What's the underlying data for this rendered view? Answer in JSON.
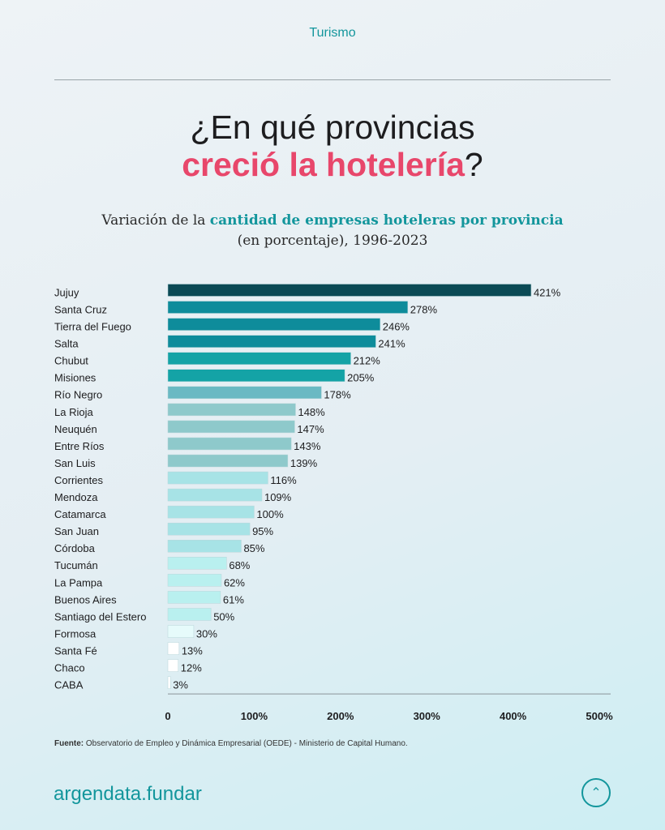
{
  "header": {
    "section": "Turismo"
  },
  "title": {
    "line1": "¿En qué provincias",
    "accent": "creció la hotelería",
    "end": "?"
  },
  "subtitle": {
    "pre": "Variación de la ",
    "highlight": "cantidad de empresas hoteleras por provincia",
    "line2": "(en porcentaje), 1996-2023"
  },
  "chart_data": {
    "type": "bar",
    "orientation": "horizontal",
    "title": "Variación de la cantidad de empresas hoteleras por provincia (en porcentaje), 1996-2023",
    "xlabel": "",
    "ylabel": "",
    "xlim": [
      0,
      500
    ],
    "x_ticks": [
      "0",
      "100%",
      "200%",
      "300%",
      "400%",
      "500%"
    ],
    "categories": [
      "Jujuy",
      "Santa Cruz",
      "Tierra del Fuego",
      "Salta",
      "Chubut",
      "Misiones",
      "Río Negro",
      "La Rioja",
      "Neuquén",
      "Entre Ríos",
      "San Luis",
      "Corrientes",
      "Mendoza",
      "Catamarca",
      "San Juan",
      "Córdoba",
      "Tucumán",
      "La Pampa",
      "Buenos Aires",
      "Santiago del Estero",
      "Formosa",
      "Santa Fé",
      "Chaco",
      "CABA"
    ],
    "values": [
      421,
      278,
      246,
      241,
      212,
      205,
      178,
      148,
      147,
      143,
      139,
      116,
      109,
      100,
      95,
      85,
      68,
      62,
      61,
      50,
      30,
      13,
      12,
      3
    ],
    "labels": [
      "421%",
      "278%",
      "246%",
      "241%",
      "212%",
      "205%",
      "178%",
      "148%",
      "147%",
      "143%",
      "139%",
      "116%",
      "109%",
      "100%",
      "95%",
      "85%",
      "68%",
      "62%",
      "61%",
      "50%",
      "30%",
      "13%",
      "12%",
      "3%"
    ],
    "colors": [
      "#0b4a55",
      "#0e8c9b",
      "#0e8c9b",
      "#0e8c9b",
      "#14a3a6",
      "#14a3a6",
      "#6ab9c3",
      "#8ec9cb",
      "#8ec9cb",
      "#8ec9cb",
      "#8ec9cb",
      "#a7e3e6",
      "#a7e3e6",
      "#a7e3e6",
      "#a7e3e6",
      "#a7e3e6",
      "#b9f0ef",
      "#b9f0ef",
      "#b9f0ef",
      "#b9f0ef",
      "#e6fbfb",
      "#ffffff",
      "#ffffff",
      "#ffffff"
    ],
    "grid": false
  },
  "footer": {
    "source_label": "Fuente:",
    "source_text": " Observatorio de Empleo y Dinámica Empresarial (OEDE) - Ministerio de Capital Humano.",
    "brand": "argendata.fundar",
    "up_icon": "chevron-up-circle-icon"
  }
}
